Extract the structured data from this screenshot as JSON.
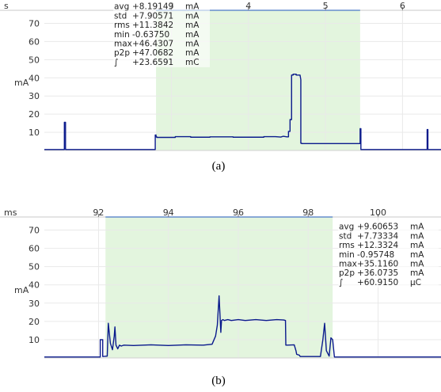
{
  "chart_data": [
    {
      "type": "line",
      "caption": "(a)",
      "xunit": "s",
      "ylabel": "mA",
      "xlim": [
        1.35,
        6.5
      ],
      "ylim": [
        0,
        75
      ],
      "xticks": [
        3,
        4,
        5,
        6
      ],
      "yticks": [
        10,
        20,
        30,
        40,
        50,
        60,
        70
      ],
      "selection": [
        2.8,
        5.45
      ],
      "line_color": "#0a1a8c",
      "selection_color": "#e3f5de",
      "stats": [
        {
          "name": "avg",
          "value": "+8.19149",
          "unit": "mA"
        },
        {
          "name": "std",
          "value": "+7.90571",
          "unit": "mA"
        },
        {
          "name": "rms",
          "value": "+11.3842",
          "unit": "mA"
        },
        {
          "name": "min",
          "value": "-0.63750",
          "unit": "mA"
        },
        {
          "name": "max",
          "value": "+46.4307",
          "unit": "mA"
        },
        {
          "name": "p2p",
          "value": "+47.0682",
          "unit": "mA"
        },
        {
          "name": "∫",
          "value": "+23.6591",
          "unit": "mC"
        }
      ],
      "series": [
        {
          "x": [
            1.35,
            1.61,
            1.61,
            1.625,
            1.625,
            2.79,
            2.79,
            2.8,
            2.8,
            2.81,
            2.81,
            3.05,
            3.05,
            3.25,
            3.25,
            3.5,
            3.5,
            3.8,
            3.8,
            4.2,
            4.2,
            4.35,
            4.42,
            4.45,
            4.5,
            4.52,
            4.52,
            4.54,
            4.54,
            4.56,
            4.56,
            4.58,
            4.58,
            4.62,
            4.62,
            4.67,
            4.68,
            4.68,
            4.69,
            4.69,
            5.45,
            5.45,
            5.46,
            5.46,
            6.32,
            6.32,
            6.33,
            6.33,
            6.5
          ],
          "y": [
            0.5,
            0.5,
            15.5,
            15.5,
            0.5,
            0.5,
            8.5,
            8.5,
            7.5,
            7.5,
            7.2,
            7.2,
            7.6,
            7.6,
            7.3,
            7.3,
            7.5,
            7.5,
            7.3,
            7.3,
            7.6,
            7.6,
            7.4,
            7.8,
            7.5,
            7.5,
            10.5,
            10.5,
            17,
            17,
            41.5,
            41.5,
            42,
            42,
            41.5,
            41.5,
            39,
            4,
            4,
            3.8,
            3.8,
            12,
            12,
            0.5,
            0.5,
            11.5,
            11.5,
            0.5,
            0.5
          ]
        }
      ]
    },
    {
      "type": "line",
      "caption": "(b)",
      "xunit": "ms",
      "ylabel": "mA",
      "xlim": [
        90.45,
        101.8
      ],
      "ylim": [
        0,
        75
      ],
      "xticks": [
        92,
        94,
        96,
        98,
        100
      ],
      "yticks": [
        10,
        20,
        30,
        40,
        50,
        60,
        70
      ],
      "selection": [
        92.2,
        98.7
      ],
      "line_color": "#0a1a8c",
      "selection_color": "#e3f5de",
      "stats": [
        {
          "name": "avg",
          "value": "+9.60653",
          "unit": "mA"
        },
        {
          "name": "std",
          "value": "+7.73334",
          "unit": "mA"
        },
        {
          "name": "rms",
          "value": "+12.3324",
          "unit": "mA"
        },
        {
          "name": "min",
          "value": "-0.95748",
          "unit": "mA"
        },
        {
          "name": "max",
          "value": "+35.1160",
          "unit": "mA"
        },
        {
          "name": "p2p",
          "value": "+36.0735",
          "unit": "mA"
        },
        {
          "name": "∫",
          "value": "+60.9150",
          "unit": "µC"
        }
      ],
      "series": [
        {
          "x": [
            90.45,
            92.05,
            92.05,
            92.12,
            92.12,
            92.25,
            92.28,
            92.34,
            92.4,
            92.45,
            92.47,
            92.5,
            92.55,
            92.6,
            92.65,
            92.72,
            93.0,
            93.5,
            94.0,
            94.5,
            95.0,
            95.25,
            95.35,
            95.4,
            95.45,
            95.5,
            95.52,
            95.56,
            95.6,
            95.7,
            95.8,
            96.0,
            96.2,
            96.5,
            96.8,
            97.1,
            97.3,
            97.35,
            97.36,
            97.4,
            97.6,
            97.65,
            97.67,
            97.75,
            97.77,
            98.35,
            98.42,
            98.47,
            98.52,
            98.6,
            98.65,
            98.7,
            98.75,
            101.8
          ],
          "y": [
            0.5,
            0.5,
            10,
            10,
            0.8,
            1,
            19,
            8,
            4.5,
            12,
            17,
            7,
            5,
            7,
            6.5,
            7,
            6.8,
            7.2,
            6.8,
            7.2,
            7,
            7.5,
            12,
            18,
            34,
            14,
            20.5,
            21,
            20.5,
            21,
            20.5,
            21,
            20.5,
            21,
            20.5,
            21,
            20.8,
            20.5,
            7,
            7,
            7.2,
            4,
            2,
            1.5,
            0.8,
            0.8,
            10,
            19,
            4,
            1,
            11,
            10,
            0.5,
            0.5
          ]
        }
      ]
    }
  ]
}
